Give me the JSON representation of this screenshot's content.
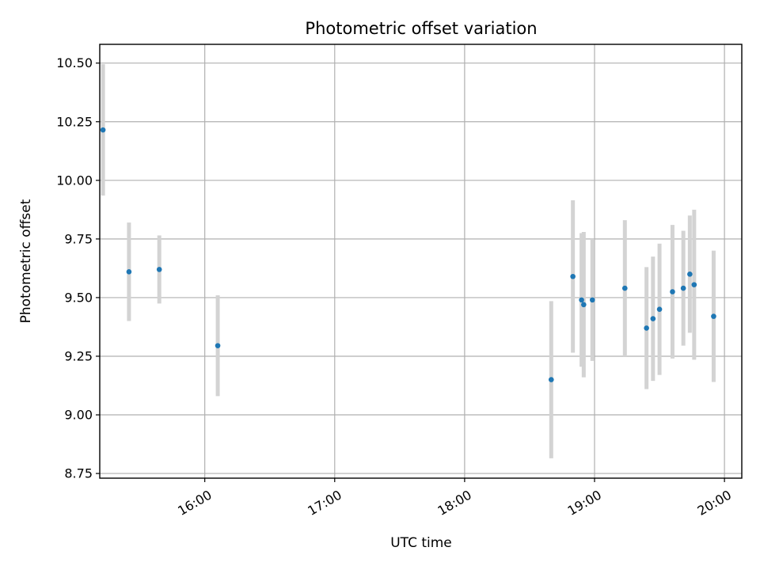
{
  "chart_data": {
    "type": "scatter",
    "title": "Photometric offset variation",
    "xlabel": "UTC time",
    "ylabel": "Photometric offset",
    "x_unit": "UTC time (HH:MM)",
    "xlim": [
      "15:13",
      "20:08"
    ],
    "ylim": [
      8.73,
      10.58
    ],
    "xticks": [
      "16:00",
      "17:00",
      "18:00",
      "19:00",
      "20:00"
    ],
    "yticks": [
      8.75,
      9.0,
      9.25,
      9.5,
      9.75,
      10.0,
      10.25,
      10.5
    ],
    "ytick_labels": [
      "8.75",
      "9.00",
      "9.25",
      "9.50",
      "9.75",
      "10.00",
      "10.25",
      "10.50"
    ],
    "grid": true,
    "colors": {
      "point": "#1f77b4",
      "errorbar": "#d3d3d3"
    },
    "series": [
      {
        "points": [
          {
            "x": "15:13",
            "y": 10.215,
            "err": 0.28
          },
          {
            "x": "15:25",
            "y": 9.61,
            "err": 0.21
          },
          {
            "x": "15:39",
            "y": 9.62,
            "err": 0.145
          },
          {
            "x": "16:06",
            "y": 9.295,
            "err": 0.215
          },
          {
            "x": "18:40",
            "y": 9.15,
            "err": 0.335
          },
          {
            "x": "18:50",
            "y": 9.59,
            "err": 0.325
          },
          {
            "x": "18:54",
            "y": 9.49,
            "err": 0.285
          },
          {
            "x": "18:55",
            "y": 9.47,
            "err": 0.31
          },
          {
            "x": "18:59",
            "y": 9.49,
            "err": 0.26
          },
          {
            "x": "19:14",
            "y": 9.54,
            "err": 0.29
          },
          {
            "x": "19:24",
            "y": 9.37,
            "err": 0.26
          },
          {
            "x": "19:27",
            "y": 9.41,
            "err": 0.265
          },
          {
            "x": "19:30",
            "y": 9.45,
            "err": 0.28
          },
          {
            "x": "19:36",
            "y": 9.525,
            "err": 0.285
          },
          {
            "x": "19:41",
            "y": 9.54,
            "err": 0.245
          },
          {
            "x": "19:44",
            "y": 9.6,
            "err": 0.25
          },
          {
            "x": "19:46",
            "y": 9.555,
            "err": 0.32
          },
          {
            "x": "19:55",
            "y": 9.42,
            "err": 0.28
          }
        ]
      }
    ]
  }
}
